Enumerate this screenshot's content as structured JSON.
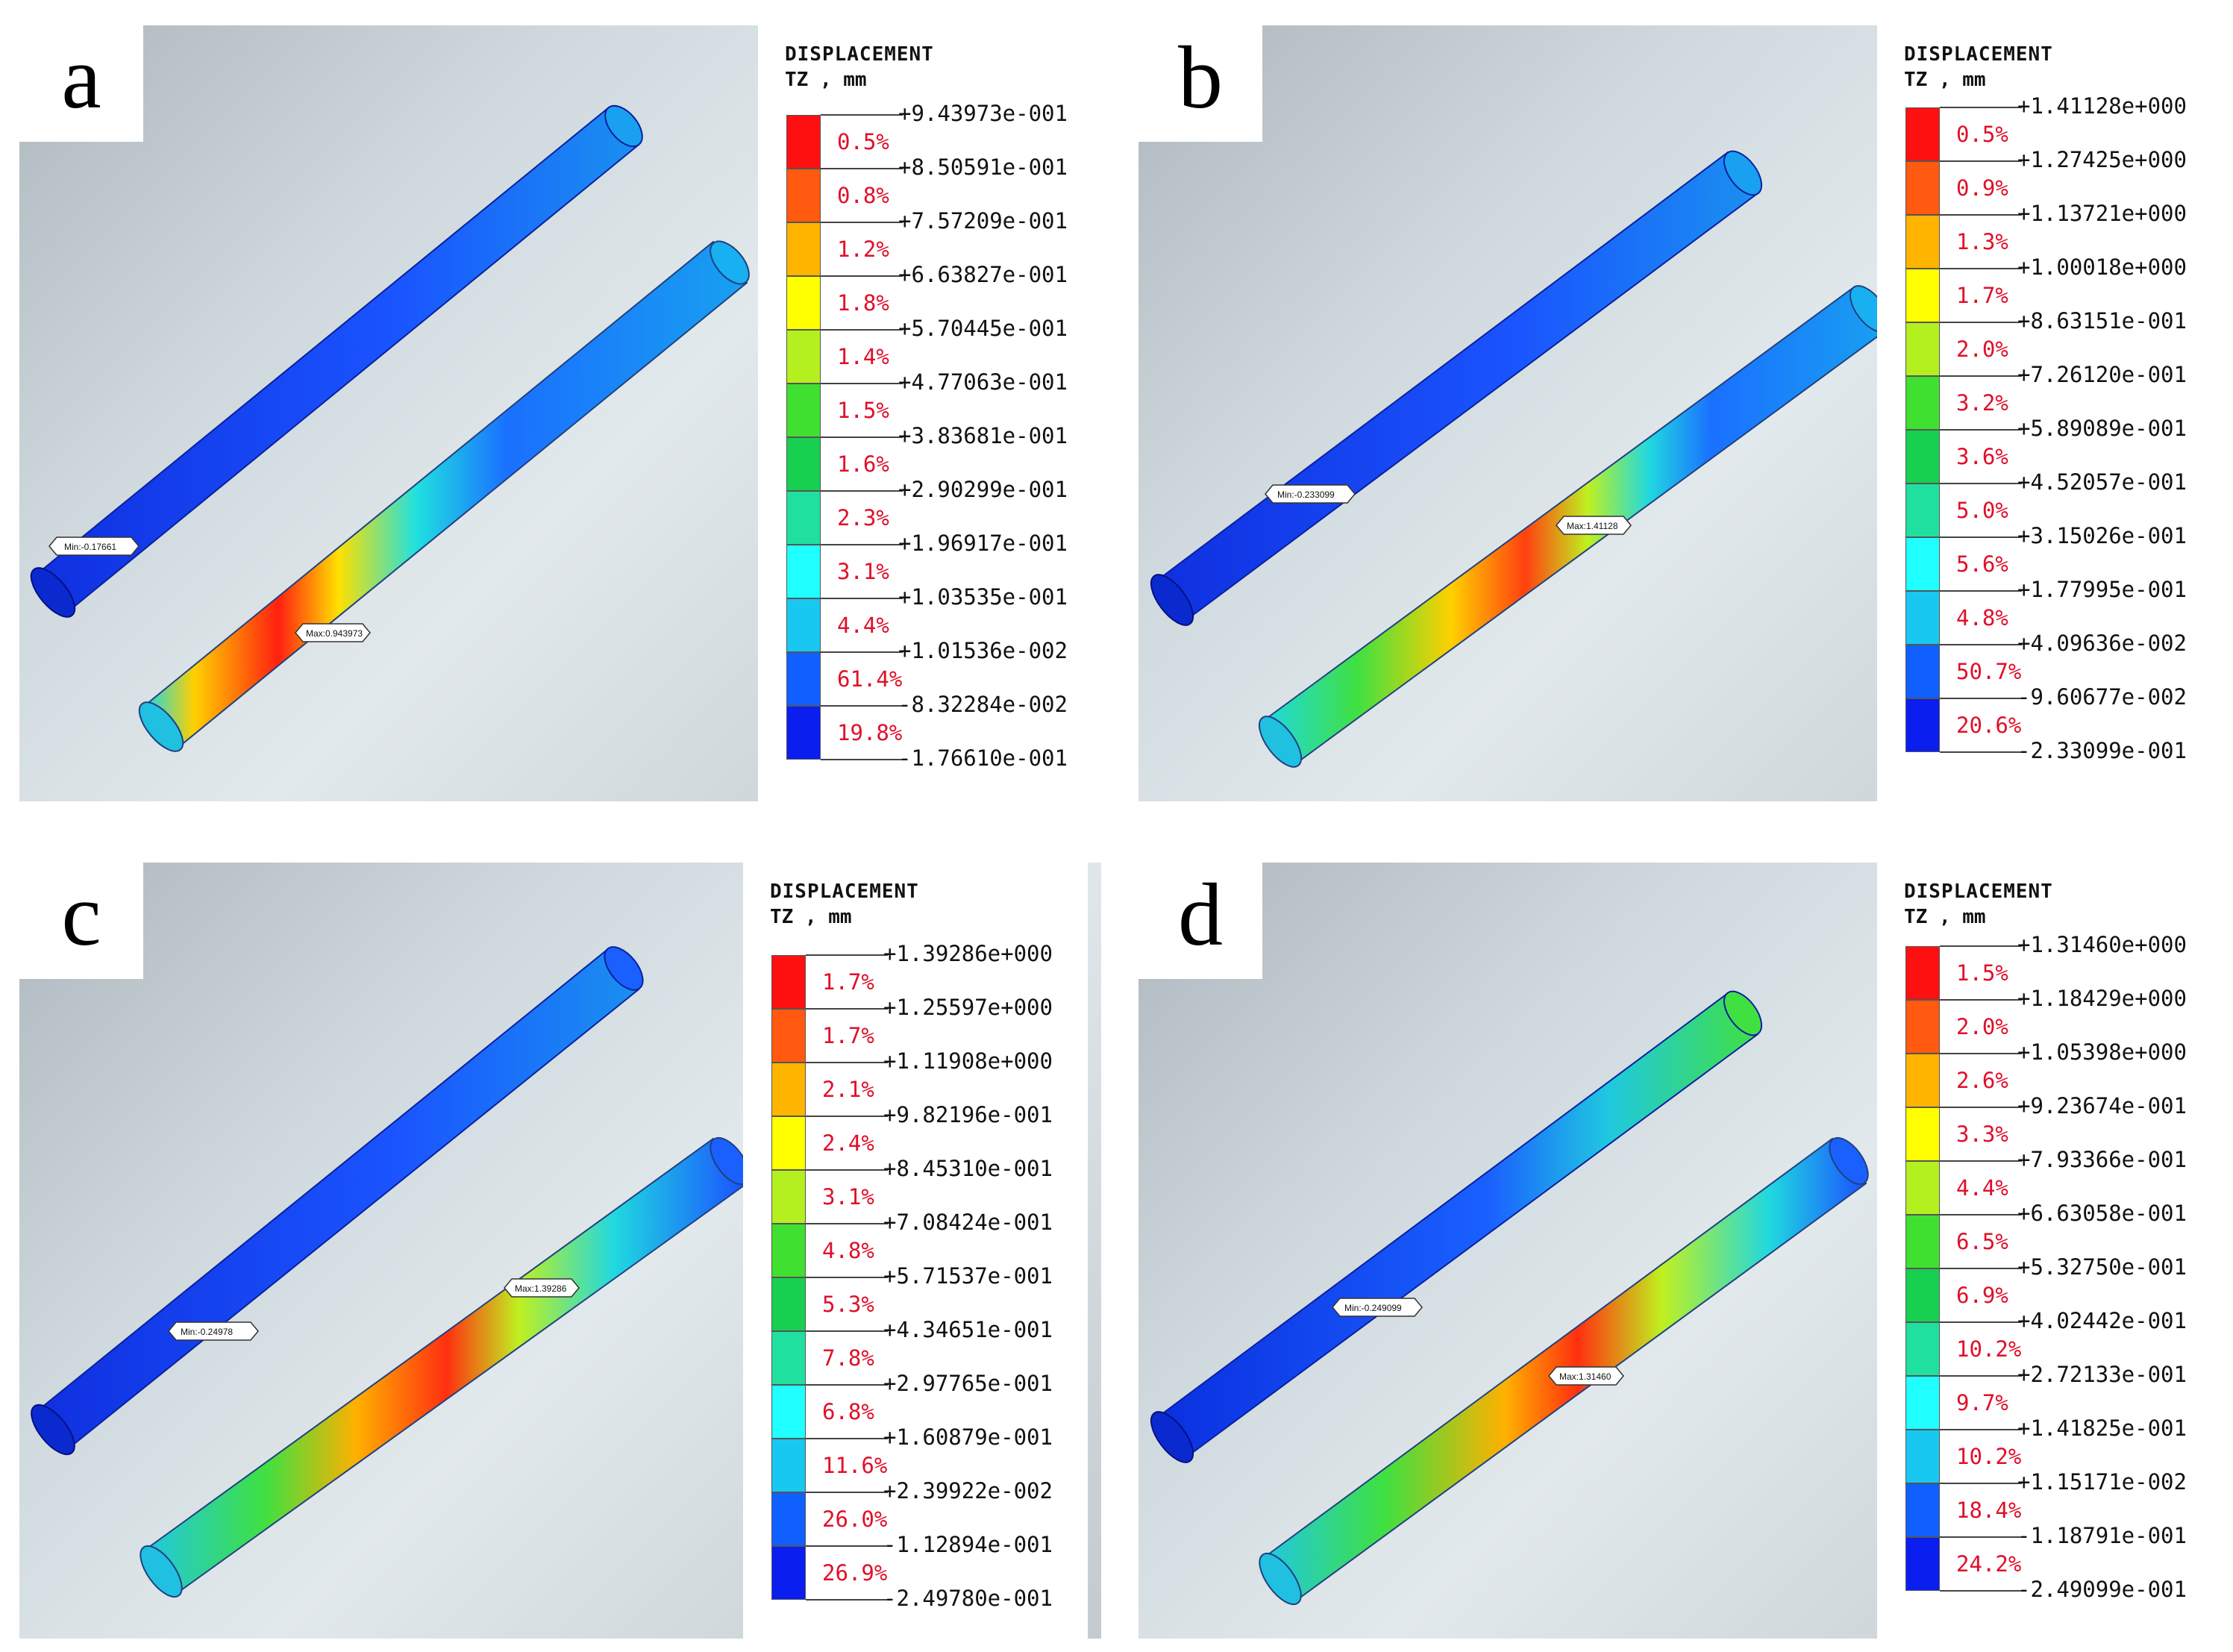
{
  "panels": [
    {
      "letter": "a",
      "legend": {
        "title": "DISPLACEMENT",
        "unit": "TZ , mm",
        "ticks": [
          "+9.43973e-001",
          "+8.50591e-001",
          "+7.57209e-001",
          "+6.63827e-001",
          "+5.70445e-001",
          "+4.77063e-001",
          "+3.83681e-001",
          "+2.90299e-001",
          "+1.96917e-001",
          "+1.03535e-001",
          "+1.01536e-002",
          "-8.32284e-002",
          "-1.76610e-001"
        ],
        "percents": [
          "0.5%",
          "0.8%",
          "1.2%",
          "1.8%",
          "1.4%",
          "1.5%",
          "1.6%",
          "2.3%",
          "3.1%",
          "4.4%",
          "61.4%",
          "19.8%"
        ]
      },
      "min_tag": "Min:-0.17661",
      "max_tag": "Max:0.943973"
    },
    {
      "letter": "b",
      "legend": {
        "title": "DISPLACEMENT",
        "unit": "TZ , mm",
        "ticks": [
          "+1.41128e+000",
          "+1.27425e+000",
          "+1.13721e+000",
          "+1.00018e+000",
          "+8.63151e-001",
          "+7.26120e-001",
          "+5.89089e-001",
          "+4.52057e-001",
          "+3.15026e-001",
          "+1.77995e-001",
          "+4.09636e-002",
          "-9.60677e-002",
          "-2.33099e-001"
        ],
        "percents": [
          "0.5%",
          "0.9%",
          "1.3%",
          "1.7%",
          "2.0%",
          "3.2%",
          "3.6%",
          "5.0%",
          "5.6%",
          "4.8%",
          "50.7%",
          "20.6%"
        ]
      },
      "min_tag": "Min:-0.233099",
      "max_tag": "Max:1.41128"
    },
    {
      "letter": "c",
      "legend": {
        "title": "DISPLACEMENT",
        "unit": "TZ , mm",
        "ticks": [
          "+1.39286e+000",
          "+1.25597e+000",
          "+1.11908e+000",
          "+9.82196e-001",
          "+8.45310e-001",
          "+7.08424e-001",
          "+5.71537e-001",
          "+4.34651e-001",
          "+2.97765e-001",
          "+1.60879e-001",
          "+2.39922e-002",
          "-1.12894e-001",
          "-2.49780e-001"
        ],
        "percents": [
          "1.7%",
          "1.7%",
          "2.1%",
          "2.4%",
          "3.1%",
          "4.8%",
          "5.3%",
          "7.8%",
          "6.8%",
          "11.6%",
          "26.0%",
          "26.9%"
        ]
      },
      "min_tag": "Min:-0.24978",
      "max_tag": "Max:1.39286"
    },
    {
      "letter": "d",
      "legend": {
        "title": "DISPLACEMENT",
        "unit": "TZ , mm",
        "ticks": [
          "+1.31460e+000",
          "+1.18429e+000",
          "+1.05398e+000",
          "+9.23674e-001",
          "+7.93366e-001",
          "+6.63058e-001",
          "+5.32750e-001",
          "+4.02442e-001",
          "+2.72133e-001",
          "+1.41825e-001",
          "+1.15171e-002",
          "-1.18791e-001",
          "-2.49099e-001"
        ],
        "percents": [
          "1.5%",
          "2.0%",
          "2.6%",
          "3.3%",
          "4.4%",
          "6.5%",
          "6.9%",
          "10.2%",
          "9.7%",
          "10.2%",
          "18.4%",
          "24.2%"
        ]
      },
      "min_tag": "Min:-0.249099",
      "max_tag": "Max:1.31460"
    }
  ],
  "colors": {
    "scale": [
      "#ff1010",
      "#ff5a10",
      "#ffb400",
      "#ffff00",
      "#b4f020",
      "#40e030",
      "#18d050",
      "#20e0a0",
      "#20ffff",
      "#18c8f0",
      "#1060ff",
      "#0a1ef0"
    ],
    "percent_text": "#e0102a"
  }
}
